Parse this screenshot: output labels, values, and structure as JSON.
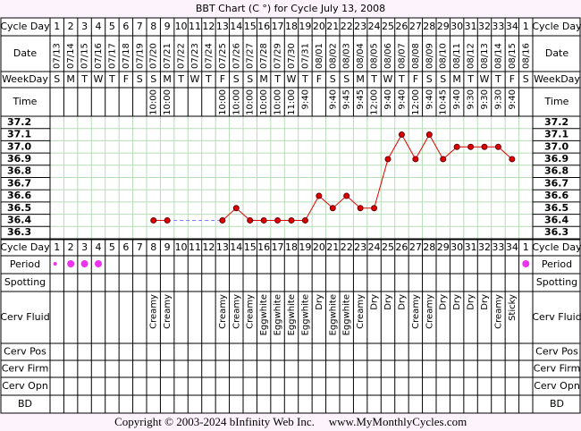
{
  "title": "BBT Chart (C °) for Cycle July 13, 2008",
  "row_labels": {
    "cycle_day": "Cycle Day",
    "date": "Date",
    "weekday": "WeekDay",
    "time": "Time",
    "period": "Period",
    "spotting": "Spotting",
    "cerv_fluid": "Cerv Fluid",
    "cerv_pos": "Cerv Pos",
    "cerv_firm": "Cerv Firm",
    "cerv_opn": "Cerv Opn",
    "bd": "BD"
  },
  "footer": {
    "copyright": "Copyright © 2003-2024 bInfinity Web Inc.",
    "site": "www.MyMonthlyCycles.com"
  },
  "chart_data": {
    "type": "line",
    "categories": [
      "07/13",
      "07/14",
      "07/15",
      "07/16",
      "07/17",
      "07/18",
      "07/19",
      "07/20",
      "07/21",
      "07/22",
      "07/23",
      "07/24",
      "07/25",
      "07/26",
      "07/27",
      "07/28",
      "07/29",
      "07/30",
      "07/31",
      "08/01",
      "08/02",
      "08/03",
      "08/04",
      "08/05",
      "08/06",
      "08/07",
      "08/08",
      "08/09",
      "08/10",
      "08/11",
      "08/12",
      "08/13",
      "08/14",
      "08/15",
      "08/16"
    ],
    "cycle_days": [
      1,
      2,
      3,
      4,
      5,
      6,
      7,
      8,
      9,
      10,
      11,
      12,
      13,
      14,
      15,
      16,
      17,
      18,
      19,
      20,
      21,
      22,
      23,
      24,
      25,
      26,
      27,
      28,
      29,
      30,
      31,
      32,
      33,
      34,
      1
    ],
    "weekdays": [
      "S",
      "M",
      "T",
      "W",
      "T",
      "F",
      "S",
      "S",
      "M",
      "T",
      "W",
      "T",
      "F",
      "S",
      "S",
      "M",
      "T",
      "W",
      "T",
      "F",
      "S",
      "S",
      "M",
      "T",
      "W",
      "T",
      "F",
      "S",
      "S",
      "M",
      "T",
      "W",
      "T",
      "F",
      "S"
    ],
    "times": [
      null,
      null,
      null,
      null,
      null,
      null,
      null,
      "10:00",
      "10:00",
      null,
      null,
      null,
      "10:00",
      "10:00",
      "10:00",
      "10:00",
      "10:00",
      "11:00",
      "9:40",
      null,
      "9:40",
      "9:45",
      "9:45",
      "12:00",
      "9:40",
      "9:40",
      "12:00",
      "9:40",
      "10:45",
      "9:40",
      "9:30",
      "9:30",
      "9:30",
      "9:40",
      null
    ],
    "values": [
      null,
      null,
      null,
      null,
      null,
      null,
      null,
      36.4,
      36.4,
      null,
      null,
      null,
      36.4,
      36.5,
      36.4,
      36.4,
      36.4,
      36.4,
      36.4,
      36.6,
      36.5,
      36.6,
      36.5,
      36.5,
      36.9,
      37.1,
      36.9,
      37.1,
      36.9,
      37.0,
      37.0,
      37.0,
      37.0,
      36.9,
      null
    ],
    "color": "#e00000",
    "ylim": [
      36.25,
      37.25
    ],
    "yticks": [
      37.2,
      37.1,
      {
        "value": 37.0,
        "label": "37.0"
      },
      36.9,
      36.8,
      36.7,
      36.6,
      36.5,
      36.4,
      36.3
    ],
    "period": [
      1,
      2,
      2,
      2,
      null,
      null,
      null,
      null,
      null,
      null,
      null,
      null,
      null,
      null,
      null,
      null,
      null,
      null,
      null,
      null,
      null,
      null,
      null,
      null,
      null,
      null,
      null,
      null,
      null,
      null,
      null,
      null,
      null,
      null,
      2
    ],
    "period_color": "#ee33ee",
    "cerv_fluid": [
      null,
      null,
      null,
      null,
      null,
      null,
      null,
      "Creamy",
      "Creamy",
      null,
      null,
      null,
      "Creamy",
      "Creamy",
      "Creamy",
      "Eggwhite",
      "Eggwhite",
      "Eggwhite",
      "Eggwhite",
      "Dry",
      "Eggwhite",
      "Eggwhite",
      "Creamy",
      "Dry",
      "Dry",
      "Dry",
      "Creamy",
      "Creamy",
      "Dry",
      "Dry",
      "Dry",
      "Dry",
      "Creamy",
      "Sticky",
      null
    ]
  }
}
